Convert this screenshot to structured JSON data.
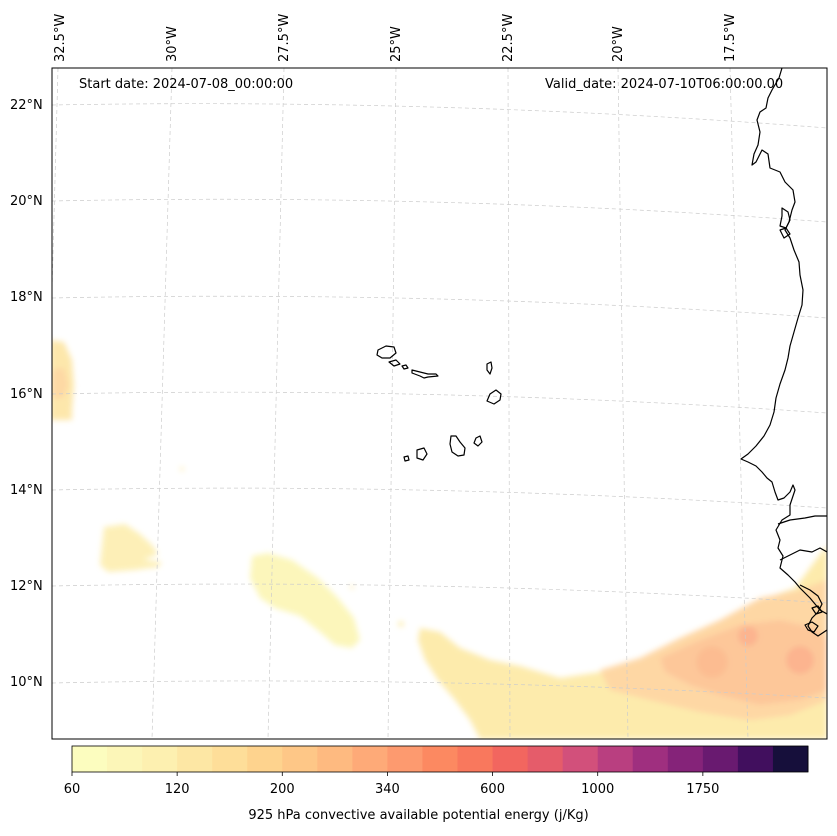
{
  "map": {
    "start_date_text": "Start date: 2024-07-08_00:00:00",
    "valid_date_text": "Valid_date: 2024-07-10T06:00:00.00",
    "lon_labels": [
      "32.5°W",
      "30°W",
      "27.5°W",
      "25°W",
      "22.5°W",
      "20°W",
      "17.5°W"
    ],
    "lat_labels": [
      "22°N",
      "20°N",
      "18°N",
      "16°N",
      "14°N",
      "12°N",
      "10°N"
    ],
    "coastline_color": "#000000",
    "grid": "dashed light gray"
  },
  "colorbar": {
    "label": "925 hPa convective available potential energy (j/Kg)",
    "tick_labels": [
      "60",
      "120",
      "200",
      "340",
      "600",
      "1000",
      "1750"
    ],
    "colors": [
      "#fcfdbf",
      "#fcf6b8",
      "#fdf0b0",
      "#fde7a4",
      "#fede99",
      "#fed38e",
      "#fec787",
      "#feba80",
      "#feaa78",
      "#fd9a6f",
      "#fc8961",
      "#f9785d",
      "#f2665f",
      "#e55c6a",
      "#d2507b",
      "#b93f80",
      "#9f2f7f",
      "#852379",
      "#691a70",
      "#410f5e",
      "#160f3b"
    ]
  }
}
